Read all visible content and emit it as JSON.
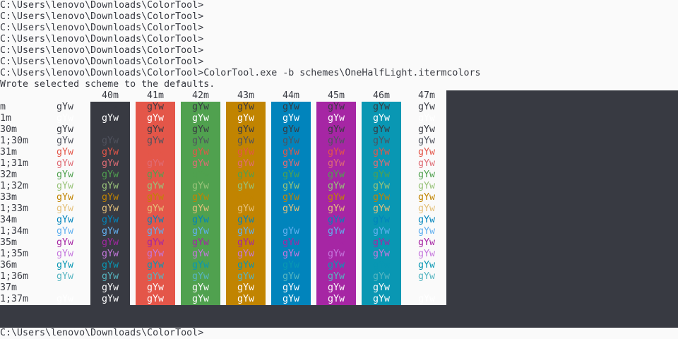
{
  "terminal": {
    "prompt_lines": [
      "C:\\Users\\lenovo\\Downloads\\ColorTool>",
      "C:\\Users\\lenovo\\Downloads\\ColorTool>",
      "C:\\Users\\lenovo\\Downloads\\ColorTool>",
      "C:\\Users\\lenovo\\Downloads\\ColorTool>",
      "C:\\Users\\lenovo\\Downloads\\ColorTool>",
      "C:\\Users\\lenovo\\Downloads\\ColorTool>",
      "C:\\Users\\lenovo\\Downloads\\ColorTool>ColorTool.exe -b schemes\\OneHalfLight.itermcolors",
      "Wrote selected scheme to the defaults."
    ],
    "final_prompt": "C:\\Users\\lenovo\\Downloads\\ColorTool>",
    "background": "#fafafa",
    "dark_area": "#383a42"
  },
  "table": {
    "sample": "gYw",
    "columns": [
      {
        "label": "40m",
        "bg": "#383a42"
      },
      {
        "label": "41m",
        "bg": "#e45649"
      },
      {
        "label": "42m",
        "bg": "#50a14f"
      },
      {
        "label": "43m",
        "bg": "#c18401"
      },
      {
        "label": "44m",
        "bg": "#0184bc"
      },
      {
        "label": "45m",
        "bg": "#a626a4"
      },
      {
        "label": "46m",
        "bg": "#0997b3"
      },
      {
        "label": "47m",
        "bg": "#fafafa"
      }
    ],
    "rows": [
      {
        "label": "m",
        "fg": "#383a42"
      },
      {
        "label": "1m",
        "fg": "#ffffff"
      },
      {
        "label": "30m",
        "fg": "#383a42"
      },
      {
        "label": "1;30m",
        "fg": "#4f525d"
      },
      {
        "label": "31m",
        "fg": "#e45649"
      },
      {
        "label": "1;31m",
        "fg": "#df6c75"
      },
      {
        "label": "32m",
        "fg": "#50a14f"
      },
      {
        "label": "1;32m",
        "fg": "#98c379"
      },
      {
        "label": "33m",
        "fg": "#c18401"
      },
      {
        "label": "1;33m",
        "fg": "#e4c07a"
      },
      {
        "label": "34m",
        "fg": "#0184bc"
      },
      {
        "label": "1;34m",
        "fg": "#61afef"
      },
      {
        "label": "35m",
        "fg": "#a626a4"
      },
      {
        "label": "1;35m",
        "fg": "#c577dd"
      },
      {
        "label": "36m",
        "fg": "#0997b3"
      },
      {
        "label": "1;36m",
        "fg": "#56b5c1"
      },
      {
        "label": "37m",
        "fg": "#fafafa"
      },
      {
        "label": "1;37m",
        "fg": "#ffffff"
      }
    ]
  }
}
